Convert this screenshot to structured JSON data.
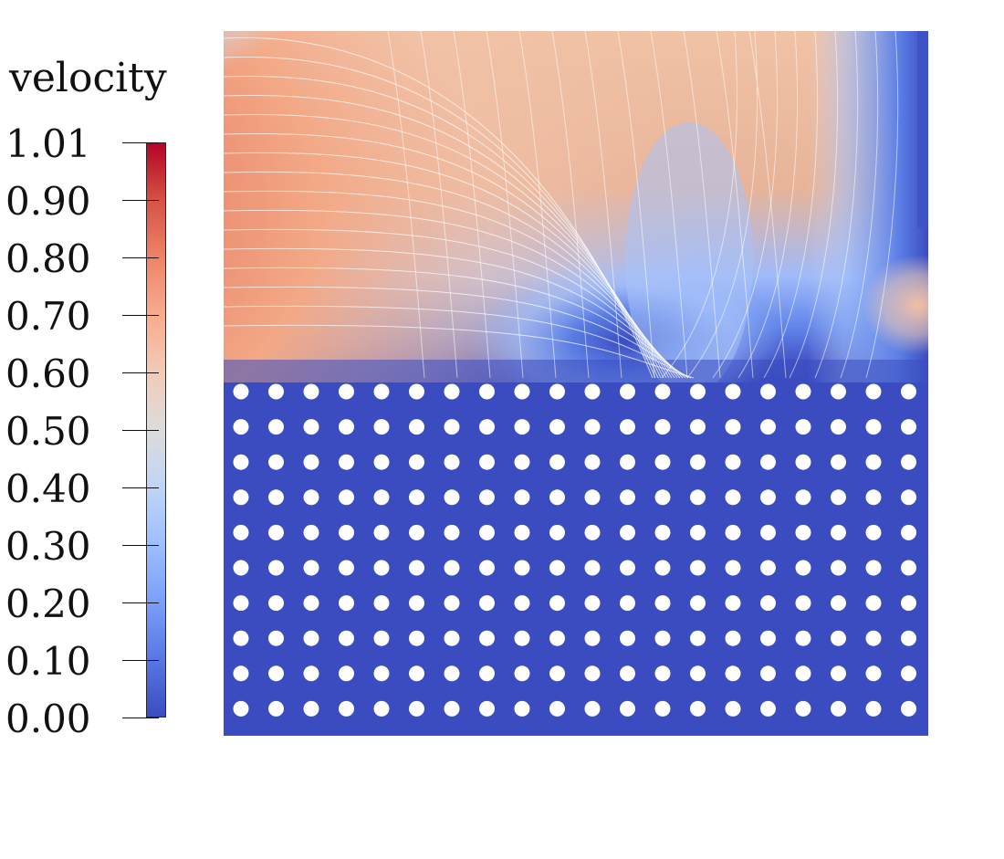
{
  "legend": {
    "title": "velocity",
    "ticks": [
      "1.01",
      "0.90",
      "0.80",
      "0.70",
      "0.60",
      "0.50",
      "0.40",
      "0.30",
      "0.20",
      "0.10",
      "0.00"
    ],
    "tick_values": [
      1.01,
      0.9,
      0.8,
      0.7,
      0.6,
      0.5,
      0.4,
      0.3,
      0.2,
      0.1,
      0.0
    ],
    "range": [
      0.0,
      1.01
    ],
    "colormap": "cool-to-warm",
    "colormap_stops": [
      "#3b4cc0",
      "#5977e3",
      "#7b9ff9",
      "#9ebeff",
      "#c0d4f5",
      "#dddcdc",
      "#f2cbb7",
      "#f7ac8e",
      "#ee8468",
      "#d65244",
      "#b40426"
    ]
  },
  "field": {
    "name": "velocity",
    "porous_region": {
      "rows": 10,
      "cols": 20,
      "obstacle_shape": "circle",
      "obstacle_color": "#ffffff"
    },
    "streamlines": true,
    "streamline_color": "#ffffff"
  }
}
